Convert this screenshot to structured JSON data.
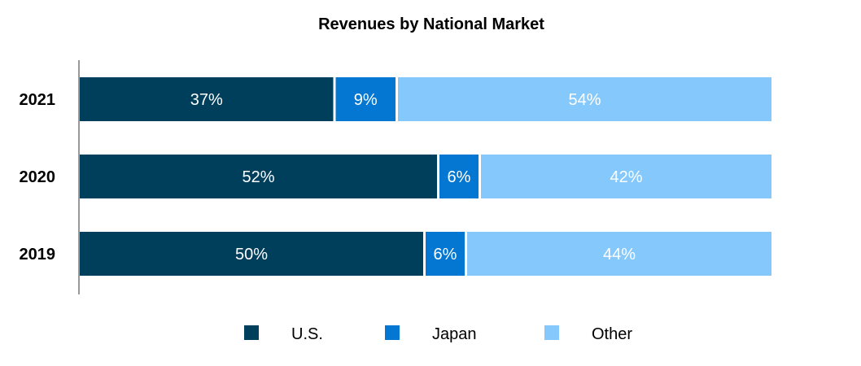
{
  "chart_data": {
    "type": "bar",
    "orientation": "horizontal",
    "stacked": true,
    "title": "Revenues by National Market",
    "categories": [
      "2021",
      "2020",
      "2019"
    ],
    "series": [
      {
        "name": "U.S.",
        "color": "#003f5c",
        "values": [
          37,
          52,
          50
        ],
        "labels": [
          "37%",
          "52%",
          "50%"
        ]
      },
      {
        "name": "Japan",
        "color": "#0377d1",
        "values": [
          9,
          6,
          6
        ],
        "labels": [
          "9%",
          "6%",
          "6%"
        ]
      },
      {
        "name": "Other",
        "color": "#85c8fb",
        "values": [
          54,
          42,
          44
        ],
        "labels": [
          "54%",
          "42%",
          "44%"
        ]
      }
    ],
    "xlim": [
      0,
      100
    ],
    "unit": "%",
    "grid": false,
    "legend": "bottom"
  }
}
